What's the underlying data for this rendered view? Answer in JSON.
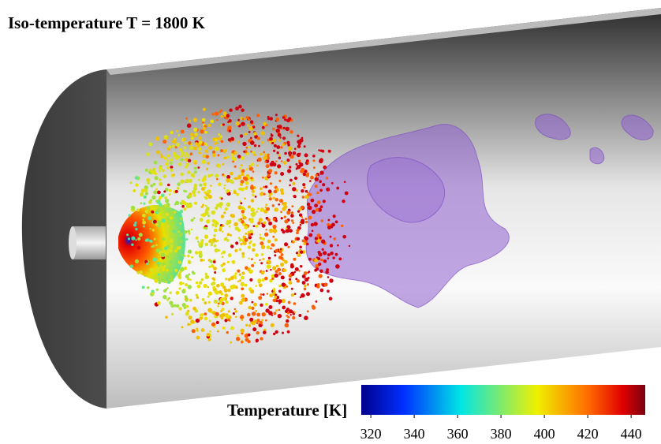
{
  "title": "Iso-temperature T = 1800 K",
  "colorbar": {
    "label": "Temperature [K]",
    "range": [
      315.6,
      446.5
    ],
    "ticks": [
      320,
      340,
      360,
      380,
      400,
      420,
      440
    ]
  }
}
